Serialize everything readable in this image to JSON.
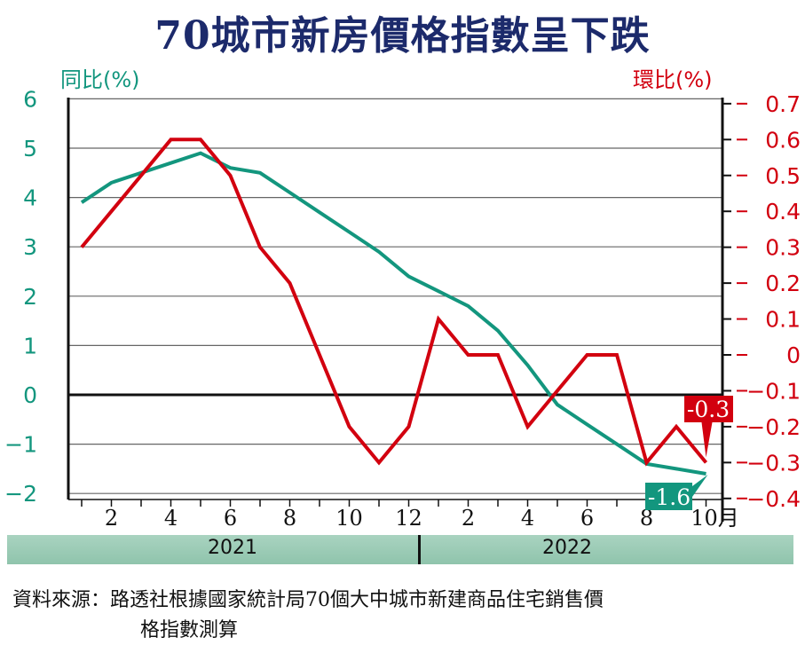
{
  "chart_data": {
    "type": "line",
    "title": "70城市新房價格指數呈下跌",
    "ylabel_left": "同比(%)",
    "ylabel_right": "環比(%)",
    "x": [
      "2021-01",
      "2021-02",
      "2021-03",
      "2021-04",
      "2021-05",
      "2021-06",
      "2021-07",
      "2021-08",
      "2021-09",
      "2021-10",
      "2021-11",
      "2021-12",
      "2022-01",
      "2022-02",
      "2022-03",
      "2022-04",
      "2022-05",
      "2022-06",
      "2022-07",
      "2022-08",
      "2022-09",
      "2022-10"
    ],
    "x_tick_labels": [
      "2",
      "4",
      "6",
      "8",
      "10",
      "12",
      "2",
      "4",
      "6",
      "8",
      "10月"
    ],
    "x_tick_months": [
      2,
      4,
      6,
      8,
      10,
      12,
      14,
      16,
      18,
      20,
      22
    ],
    "year_labels": [
      "2021",
      "2022"
    ],
    "ylim_left": [
      -2,
      6
    ],
    "yticks_left": [
      "6",
      "5",
      "4",
      "3",
      "2",
      "1",
      "0",
      "−1",
      "−2"
    ],
    "ylim_right": [
      -0.4,
      0.7
    ],
    "yticks_right": [
      "0.7",
      "0.6",
      "0.5",
      "0.4",
      "0.3",
      "0.2",
      "0.1",
      "0",
      "−0.1",
      "−0.2",
      "−0.3",
      "−0.4"
    ],
    "grid": true,
    "series": [
      {
        "name": "同比(%)",
        "axis": "left",
        "color": "#13967e",
        "values": [
          3.9,
          4.3,
          4.5,
          4.7,
          4.9,
          4.6,
          4.5,
          4.1,
          3.7,
          3.3,
          2.9,
          2.4,
          2.1,
          1.8,
          1.3,
          0.6,
          -0.2,
          -0.6,
          -1.0,
          -1.4,
          -1.5,
          -1.6
        ]
      },
      {
        "name": "環比(%)",
        "axis": "right",
        "color": "#d2000f",
        "values": [
          0.3,
          0.4,
          0.5,
          0.6,
          0.6,
          0.5,
          0.3,
          0.2,
          0.0,
          -0.2,
          -0.3,
          -0.2,
          0.1,
          0.0,
          0.0,
          -0.2,
          -0.1,
          0.0,
          0.0,
          -0.3,
          -0.2,
          -0.3
        ]
      }
    ],
    "annotations": [
      {
        "text": "-0.3",
        "series": "環比(%)",
        "color": "#d2000f"
      },
      {
        "text": "-1.6",
        "series": "同比(%)",
        "color": "#13967e"
      }
    ]
  },
  "source": {
    "line1": "資料來源：路透社根據國家統計局70個大中城市新建商品住宅銷售價",
    "line2": "格指數測算"
  }
}
